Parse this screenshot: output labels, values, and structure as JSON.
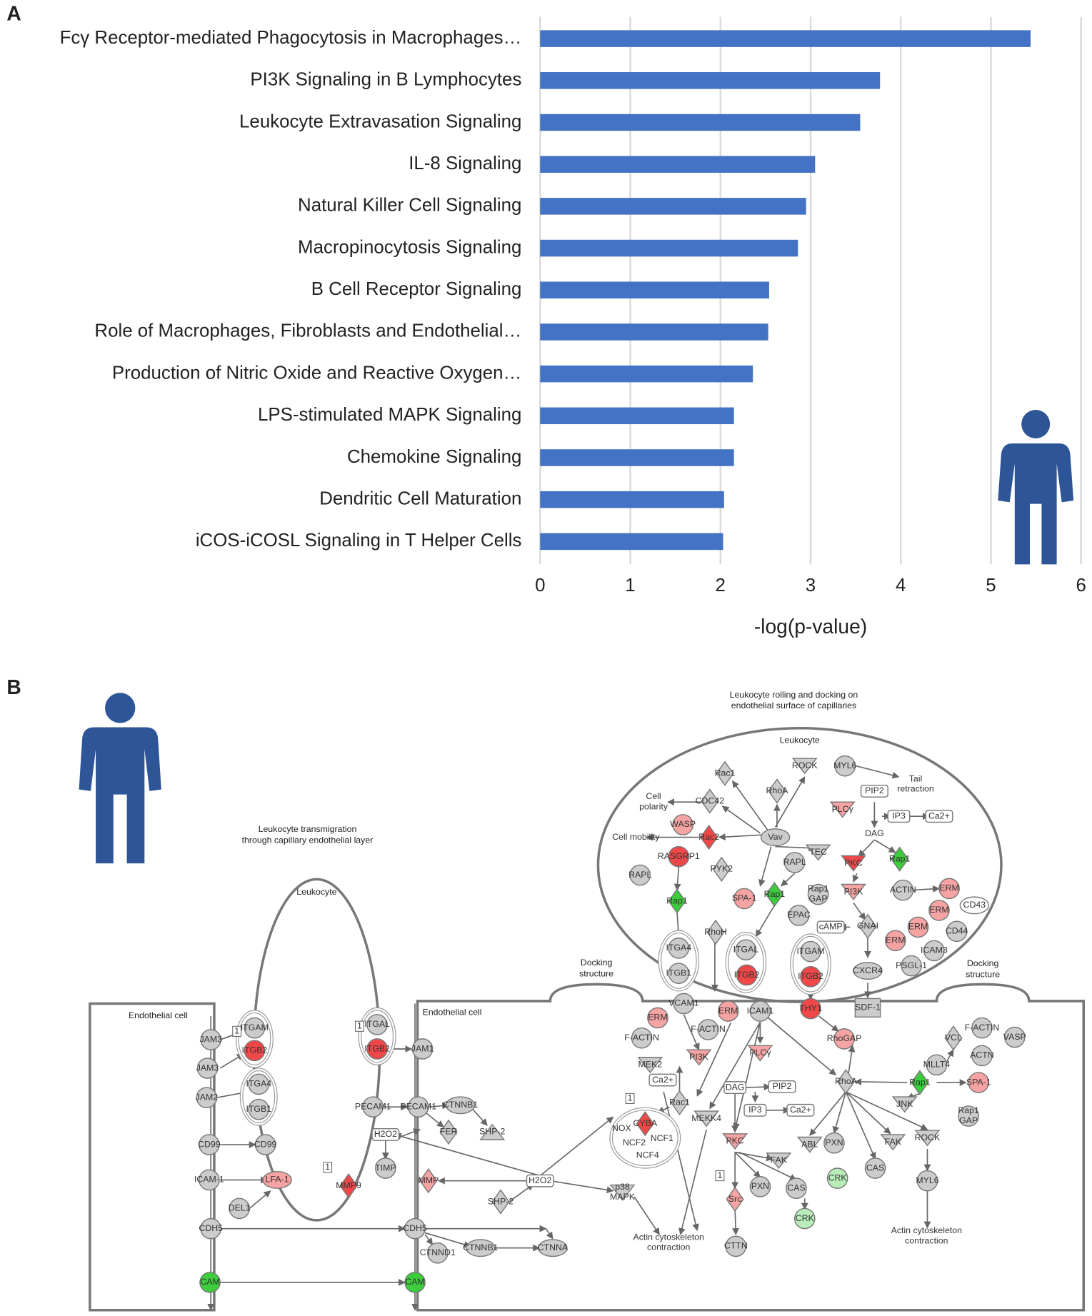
{
  "panel_labels": [
    "A",
    "B"
  ],
  "chart_data": {
    "type": "bar",
    "orientation": "horizontal",
    "color": "#4472c4",
    "grid": true,
    "x_label": "-log(p-value)",
    "categories": [
      "Fcγ Receptor-mediated Phagocytosis in Macrophages…",
      "PI3K Signaling in B Lymphocytes",
      "Leukocyte Extravasation Signaling",
      "IL-8 Signaling",
      "Natural Killer Cell Signaling",
      "Macropinocytosis Signaling",
      "B Cell Receptor Signaling",
      "Role of Macrophages, Fibroblasts and Endothelial…",
      "Production of Nitric Oxide and Reactive Oxygen…",
      "LPS-stimulated MAPK Signaling",
      "Chemokine Signaling",
      "Dendritic Cell Maturation",
      "iCOS-iCOSL Signaling in T Helper Cells"
    ],
    "values": [
      5.44,
      3.77,
      3.55,
      3.05,
      2.95,
      2.86,
      2.54,
      2.53,
      2.36,
      2.15,
      2.15,
      2.04,
      2.03
    ],
    "xlim": [
      0,
      6
    ],
    "xticks": [
      0,
      1,
      2,
      3,
      4,
      5,
      6
    ]
  },
  "diagram": {
    "texts": [
      [
        "Endothelial cell"
      ],
      [
        "Endothelial cell"
      ],
      [
        "Leukocyte transmigration",
        "through capillary endothelial layer"
      ],
      [
        "Leukocyte"
      ],
      [
        "Leukocyte rolling and docking on",
        "endothelial surface of capillaries"
      ],
      [
        "Leukocyte"
      ],
      [
        "Docking",
        "structure"
      ],
      [
        "Docking",
        "structure"
      ]
    ],
    "nodes": [
      {
        "label": "JAM3"
      },
      {
        "label": "ITGAM"
      },
      {
        "label": "ITGB2"
      },
      {
        "label": "JAM3"
      },
      {
        "label": "JAM2"
      },
      {
        "label": "ITGA4"
      },
      {
        "label": "ITGB1"
      },
      {
        "label": "ITGAL"
      },
      {
        "label": "ITGB2"
      },
      {
        "label": "JAM1"
      },
      {
        "label": "PECAM1"
      },
      {
        "label": "PECAM1"
      },
      {
        "label": "CTNNB1"
      },
      {
        "label": "FER"
      },
      {
        "label": "SHP-2"
      },
      {
        "label": "CD99"
      },
      {
        "label": "CD99"
      },
      {
        "label": "H2O2"
      },
      {
        "label": "TIMP"
      },
      {
        "label": "ICAM-1"
      },
      {
        "label": "LFA-1"
      },
      {
        "label": "MMP9"
      },
      {
        "label": "DEL1"
      },
      {
        "label": "MMP"
      },
      {
        "label": "H2O2"
      },
      {
        "label": "SHP-2"
      },
      {
        "label": [
          "p38",
          "MAPK"
        ]
      },
      {
        "label": "CDH5"
      },
      {
        "label": "CDH5"
      },
      {
        "label": "CTNND1"
      },
      {
        "label": "CTNNB1"
      },
      {
        "label": "CTNNA"
      },
      {
        "label": "CAM"
      },
      {
        "label": "CAM"
      },
      {
        "label": "Rac1"
      },
      {
        "label": "ROCK"
      },
      {
        "label": "MYL6"
      },
      {
        "label": [
          "Tail",
          "retraction"
        ]
      },
      {
        "label": [
          "Cell",
          "polarity"
        ]
      },
      {
        "label": "CDC42"
      },
      {
        "label": "RhoA"
      },
      {
        "label": "PLCγ"
      },
      {
        "label": "PIP2"
      },
      {
        "label": "WASP"
      },
      {
        "label": "IP3"
      },
      {
        "label": "Ca2+"
      },
      {
        "label": "Cell mobility"
      },
      {
        "label": "Rac2"
      },
      {
        "label": "Vav"
      },
      {
        "label": "TEC"
      },
      {
        "label": "DAG"
      },
      {
        "label": "RASGRP1"
      },
      {
        "label": "PYK2"
      },
      {
        "label": "RAPL"
      },
      {
        "label": "PKC"
      },
      {
        "label": "Rap1"
      },
      {
        "label": "RAPL"
      },
      {
        "label": "Rap1"
      },
      {
        "label": "SPA-1"
      },
      {
        "label": "Rap1"
      },
      {
        "label": [
          "Rap1",
          "GAP"
        ]
      },
      {
        "label": "PI3K"
      },
      {
        "label": "ACTIN"
      },
      {
        "label": "ERM"
      },
      {
        "label": "CD43"
      },
      {
        "label": "EPAC"
      },
      {
        "label": "ERM"
      },
      {
        "label": "RhoH"
      },
      {
        "label": "cAMP"
      },
      {
        "label": "GNAI"
      },
      {
        "label": "ERM"
      },
      {
        "label": "CD44"
      },
      {
        "label": "ERM"
      },
      {
        "label": "ICAM3"
      },
      {
        "label": "ITGA4"
      },
      {
        "label": "ITGB1"
      },
      {
        "label": "ITGAL"
      },
      {
        "label": "ITGB2"
      },
      {
        "label": "ITGAM"
      },
      {
        "label": "ITGB2"
      },
      {
        "label": "CXCR4"
      },
      {
        "label": "PSGL-1"
      },
      {
        "label": "THY1"
      },
      {
        "label": "SDF-1"
      },
      {
        "label": "VCAM1"
      },
      {
        "label": "ERM"
      },
      {
        "label": "ERM"
      },
      {
        "label": "ICAM1"
      },
      {
        "label": "F-ACTIN"
      },
      {
        "label": "F-ACTIN"
      },
      {
        "label": "PI3K"
      },
      {
        "label": "RhoGAP"
      },
      {
        "label": "PLCγ"
      },
      {
        "label": "MEK2"
      },
      {
        "label": "Ca2+"
      },
      {
        "label": "DAG"
      },
      {
        "label": "PIP2"
      },
      {
        "label": "IP3"
      },
      {
        "label": "Ca2+"
      },
      {
        "label": "Rac1"
      },
      {
        "label": "VCL"
      },
      {
        "label": "F-ACTIN"
      },
      {
        "label": "VASP"
      },
      {
        "label": "ACTN"
      },
      {
        "label": "MLLT4"
      },
      {
        "label": "RhoA"
      },
      {
        "label": "Rap1"
      },
      {
        "label": "SPA-1"
      },
      {
        "label": "JNK"
      },
      {
        "label": [
          "Rap1",
          "GAP"
        ]
      },
      {
        "label": "CYBA"
      },
      {
        "label": "NOX"
      },
      {
        "label": "NCF2"
      },
      {
        "label": "NCF1"
      },
      {
        "label": "NCF4"
      },
      {
        "label": "MEKK4"
      },
      {
        "label": "PKC"
      },
      {
        "label": "ABL"
      },
      {
        "label": "PXN"
      },
      {
        "label": "FAK"
      },
      {
        "label": "ROCK"
      },
      {
        "label": "FAK"
      },
      {
        "label": "CRK"
      },
      {
        "label": "CAS"
      },
      {
        "label": "MYL6"
      },
      {
        "label": "PXN"
      },
      {
        "label": "CAS"
      },
      {
        "label": "Src"
      },
      {
        "label": "CRK"
      },
      {
        "label": [
          "Actin cytoskeleton",
          "contraction"
        ]
      },
      {
        "label": "CTTN"
      },
      {
        "label": [
          "Actin cytoskeleton",
          "contraction"
        ]
      },
      {
        "label": "1"
      },
      {
        "label": "1"
      },
      {
        "label": "1"
      },
      {
        "label": "1"
      },
      {
        "label": "1"
      }
    ]
  }
}
